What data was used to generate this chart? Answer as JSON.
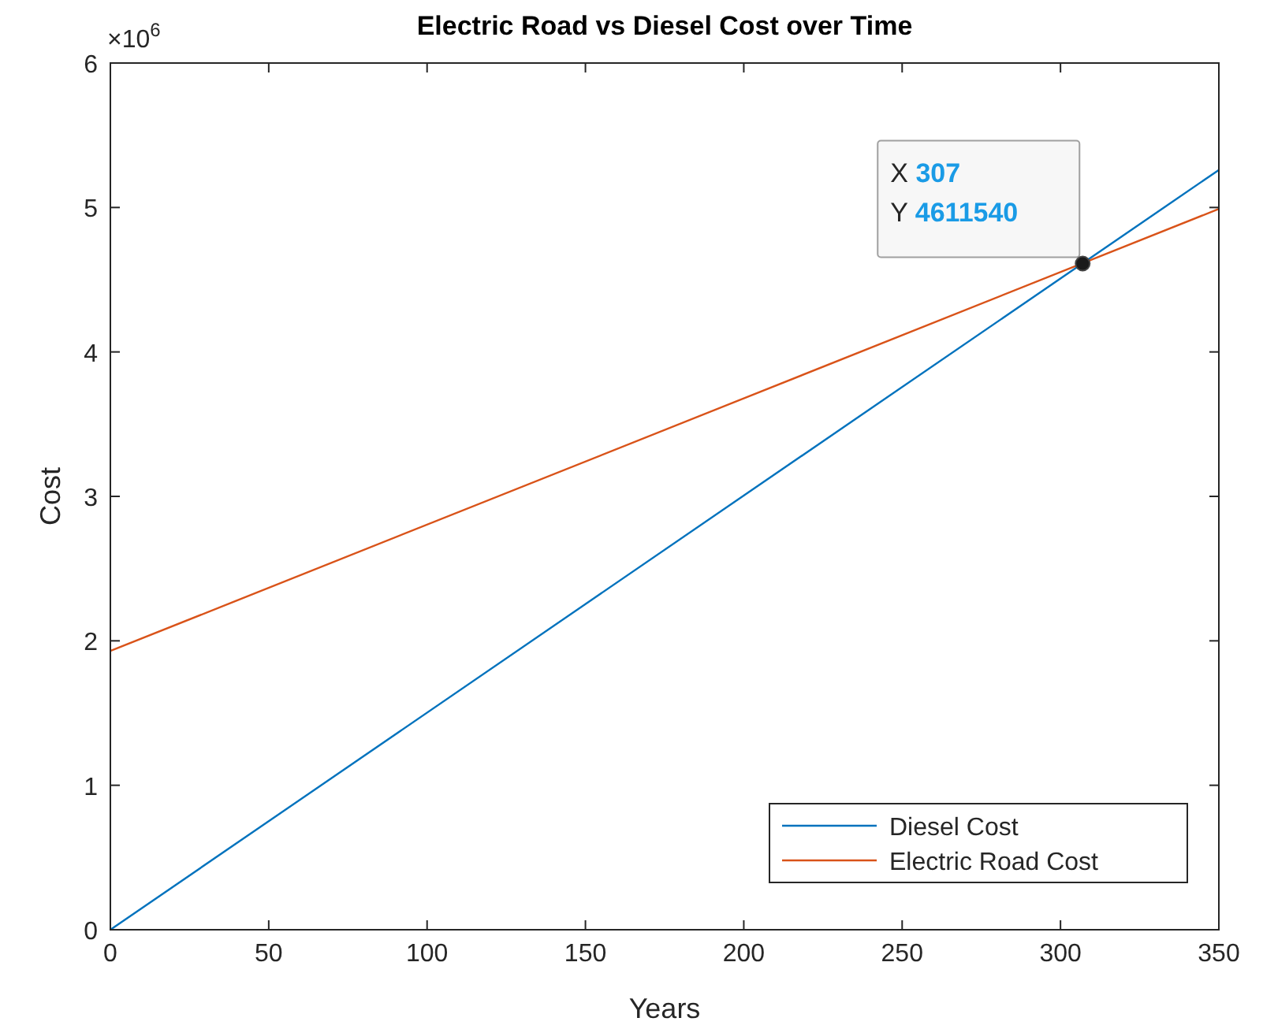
{
  "chart_data": {
    "type": "line",
    "title": "Electric Road vs Diesel Cost over Time",
    "xlabel": "Years",
    "ylabel": "Cost",
    "x": [
      0,
      350
    ],
    "series": [
      {
        "name": "Diesel Cost",
        "color": "#0072bd",
        "values": [
          0,
          5.26
        ]
      },
      {
        "name": "Electric Road Cost",
        "color": "#d95319",
        "values": [
          1.93,
          4.99
        ]
      }
    ],
    "xlim": [
      0,
      350
    ],
    "xticks": [
      0,
      50,
      100,
      150,
      200,
      250,
      300,
      350
    ],
    "ylim": [
      0,
      6
    ],
    "yticks": [
      0,
      1,
      2,
      3,
      4,
      5,
      6
    ],
    "annotations": [
      "×10$^{6}$",
      {
        "text": "X 307\nY 4611540",
        "x": 307,
        "y": 4.61154
      }
    ],
    "legend": "bottom right",
    "grid": false,
    "marker": "none",
    "line_style": "solid"
  }
}
